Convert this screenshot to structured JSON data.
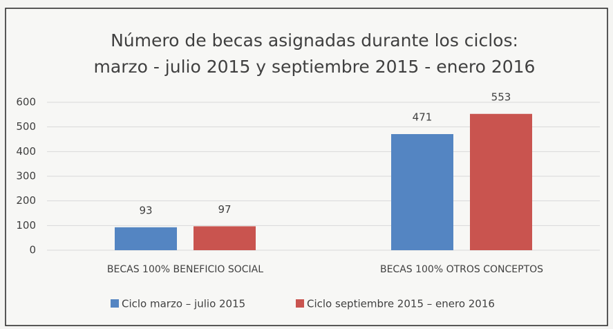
{
  "chart_data": {
    "type": "bar",
    "title": [
      "Número de becas asignadas durante los ciclos:",
      "marzo - julio 2015 y septiembre 2015 - enero 2016"
    ],
    "categories": [
      "BECAS 100% BENEFICIO SOCIAL",
      "BECAS 100% OTROS CONCEPTOS"
    ],
    "series": [
      {
        "name": "Ciclo marzo – julio 2015",
        "color": "#5485c2",
        "values": [
          93,
          471
        ]
      },
      {
        "name": "Ciclo septiembre 2015 – enero 2016",
        "color": "#c9544f",
        "values": [
          97,
          553
        ]
      }
    ],
    "ylim": [
      0,
      600
    ],
    "yticks": [
      0,
      100,
      200,
      300,
      400,
      500,
      600
    ],
    "grid": true,
    "legend": "bottom"
  }
}
